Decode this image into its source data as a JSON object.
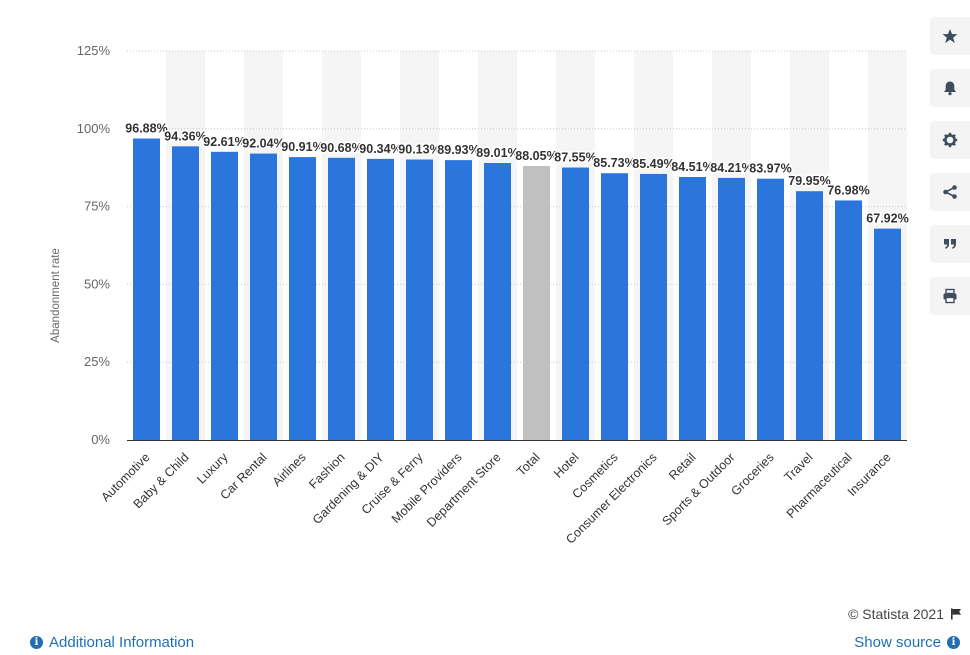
{
  "chart_data": {
    "type": "bar",
    "ylabel": "Abandonment rate",
    "ylim": [
      0,
      125
    ],
    "yticks": [
      "0%",
      "25%",
      "50%",
      "75%",
      "100%",
      "125%"
    ],
    "categories": [
      "Automotive",
      "Baby & Child",
      "Luxury",
      "Car Rental",
      "Airlines",
      "Fashion",
      "Gardening & DIY",
      "Cruise & Ferry",
      "Mobile Providers",
      "Department Store",
      "Total",
      "Hotel",
      "Cosmetics",
      "Consumer Electronics",
      "Retail",
      "Sports & Outdoor",
      "Groceries",
      "Travel",
      "Pharmaceutical",
      "Insurance"
    ],
    "values": [
      96.88,
      94.36,
      92.61,
      92.04,
      90.91,
      90.68,
      90.34,
      90.13,
      89.93,
      89.01,
      88.05,
      87.55,
      85.73,
      85.49,
      84.51,
      84.21,
      83.97,
      79.95,
      76.98,
      67.92
    ],
    "value_labels": [
      "96.88%",
      "94.36%",
      "92.61%",
      "92.04%",
      "90.91%",
      "90.68%",
      "90.34%",
      "90.13%",
      "89.93%",
      "89.01%",
      "88.05%",
      "87.55%",
      "85.73%",
      "85.49%",
      "84.51%",
      "84.21%",
      "83.97%",
      "79.95%",
      "76.98%",
      "67.92%"
    ],
    "bar_color": "#2a76dd",
    "highlight_category": "Total",
    "highlight_color": "#c0c0c0",
    "grid": true
  },
  "toolbar": {
    "icons": [
      "star-icon",
      "bell-icon",
      "gear-icon",
      "share-icon",
      "quote-icon",
      "print-icon"
    ]
  },
  "credits": {
    "text": "© Statista 2021"
  },
  "footer": {
    "additional_info": "Additional Information",
    "show_source": "Show source"
  }
}
